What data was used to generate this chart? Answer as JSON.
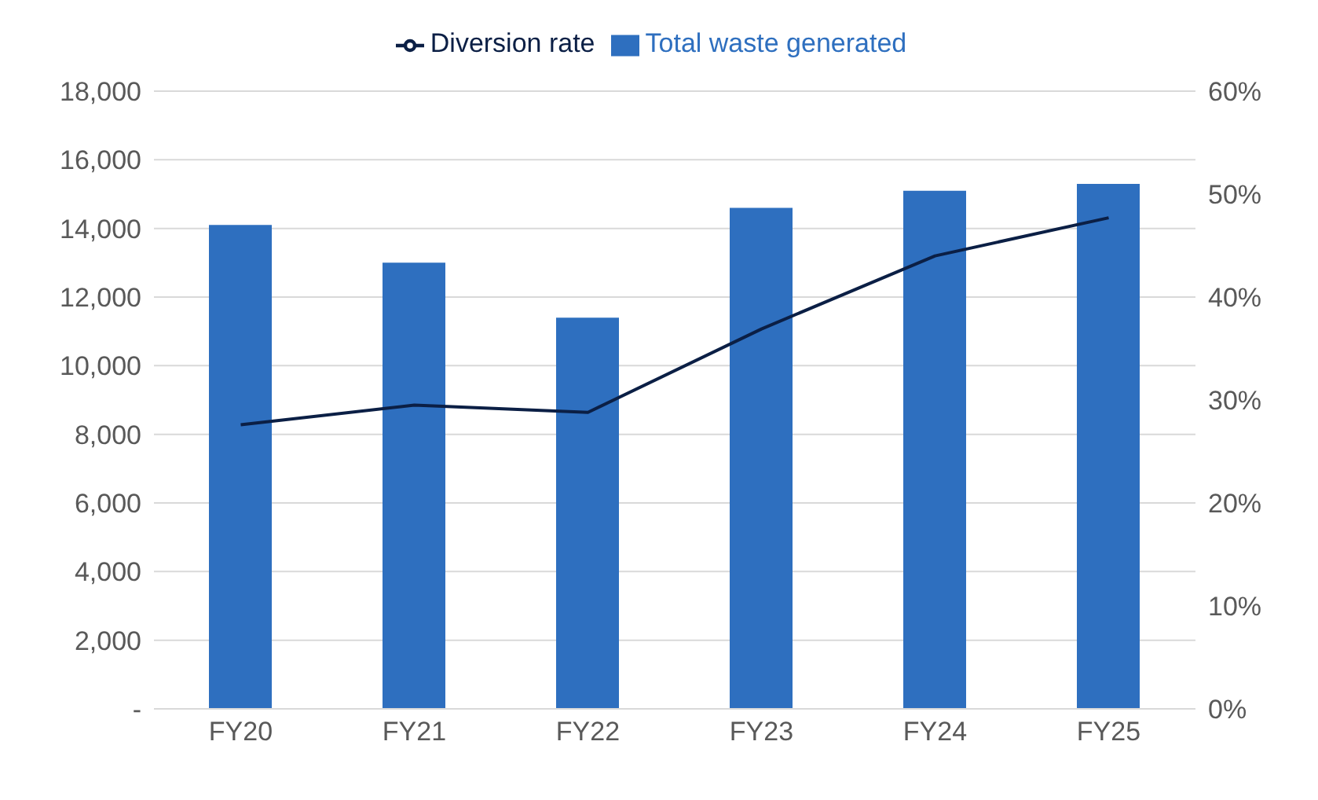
{
  "chart_data": {
    "type": "bar",
    "categories": [
      "FY20",
      "FY21",
      "FY22",
      "FY23",
      "FY24",
      "FY25"
    ],
    "series": [
      {
        "name": "Total waste generated",
        "color": "#2e6fbf",
        "values": [
          14100,
          13000,
          11400,
          14600,
          15100,
          15300
        ]
      },
      {
        "name": "Diversion rate",
        "type": "line",
        "axis": "y2",
        "color": "#0b1f45",
        "values": [
          27.6,
          29.5,
          28.8,
          36.9,
          44.0,
          47.7
        ]
      }
    ],
    "ylim": [
      0,
      18000
    ],
    "yticks": [
      {
        "value": 0,
        "label": "-"
      },
      {
        "value": 2000,
        "label": "2,000"
      },
      {
        "value": 4000,
        "label": "4,000"
      },
      {
        "value": 6000,
        "label": "6,000"
      },
      {
        "value": 8000,
        "label": "8,000"
      },
      {
        "value": 10000,
        "label": "10,000"
      },
      {
        "value": 12000,
        "label": "12,000"
      },
      {
        "value": 14000,
        "label": "14,000"
      },
      {
        "value": 16000,
        "label": "16,000"
      },
      {
        "value": 18000,
        "label": "18,000"
      }
    ],
    "y2lim": [
      0,
      60
    ],
    "y2ticks": [
      {
        "value": 0,
        "label": "0%"
      },
      {
        "value": 10,
        "label": "10%"
      },
      {
        "value": 20,
        "label": "20%"
      },
      {
        "value": 30,
        "label": "30%"
      },
      {
        "value": 40,
        "label": "40%"
      },
      {
        "value": 50,
        "label": "50%"
      },
      {
        "value": 60,
        "label": "60%"
      }
    ],
    "grid": "y",
    "legend": "top",
    "marker": "none"
  }
}
